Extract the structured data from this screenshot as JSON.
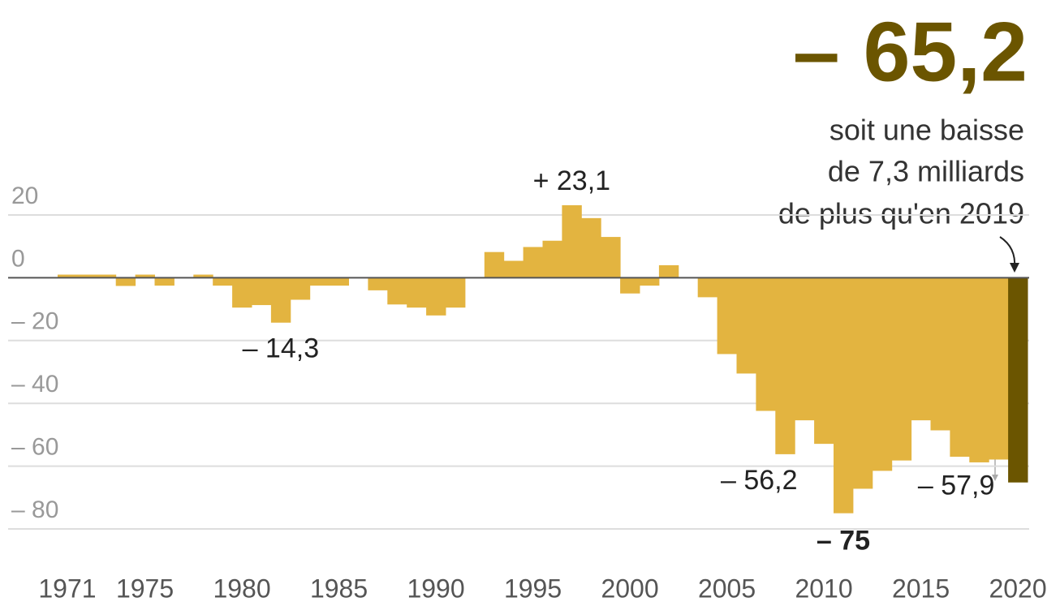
{
  "chart_data": {
    "type": "bar",
    "title": "– 65,2",
    "annotation": [
      "soit une baisse",
      "de 7,3 milliards",
      "de plus qu'en 2019"
    ],
    "categories": [
      "1971",
      null,
      null,
      null,
      "1975",
      null,
      null,
      null,
      null,
      "1980",
      null,
      null,
      null,
      null,
      "1985",
      null,
      null,
      null,
      null,
      "1990",
      null,
      null,
      null,
      null,
      "1995",
      null,
      null,
      null,
      null,
      "2000",
      null,
      null,
      null,
      null,
      "2005",
      null,
      null,
      null,
      null,
      "2010",
      null,
      null,
      null,
      null,
      "2015",
      null,
      null,
      null,
      null,
      "2020"
    ],
    "values": [
      1,
      1,
      1,
      -2.6,
      1,
      -2.5,
      0,
      1,
      -2.5,
      -9.5,
      -8.7,
      -14.3,
      -7,
      -2.5,
      -2.5,
      0,
      -4,
      -8.5,
      -9.5,
      -12,
      -9.5,
      0,
      8.2,
      5.4,
      9.8,
      11.8,
      23.1,
      19,
      13,
      -5,
      -2.5,
      4,
      0,
      -6.2,
      -24.3,
      -30.5,
      -42.4,
      -56.2,
      -45.4,
      -52.9,
      -75,
      -67.2,
      -61.5,
      -58.2,
      -45.4,
      -48.6,
      -57,
      -58.8,
      -57.9,
      -65.2
    ],
    "value_labels": [
      null,
      null,
      null,
      null,
      null,
      null,
      null,
      null,
      null,
      null,
      null,
      "– 14,3",
      null,
      null,
      null,
      null,
      null,
      null,
      null,
      null,
      null,
      null,
      null,
      null,
      null,
      null,
      "+ 23,1",
      null,
      null,
      null,
      null,
      null,
      null,
      null,
      null,
      null,
      null,
      "– 56,2",
      null,
      null,
      "– 75",
      null,
      null,
      null,
      null,
      null,
      null,
      null,
      "– 57,9",
      null
    ],
    "color": "#e3b440",
    "highlight_color": "#6b5500",
    "ylim": [
      -80,
      25
    ],
    "yticks": [
      20,
      0,
      {
        "value": -20,
        "label": "– 20"
      },
      {
        "value": -40,
        "label": "– 40"
      },
      {
        "value": -60,
        "label": "– 60"
      },
      {
        "value": -80,
        "label": "– 80"
      }
    ],
    "grid": true
  }
}
